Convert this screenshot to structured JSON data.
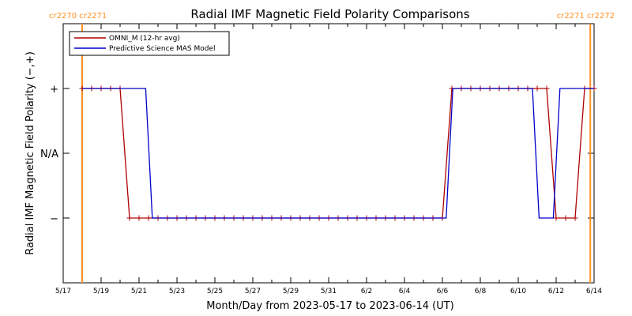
{
  "chart_data": {
    "type": "line",
    "title": "Radial IMF Magnetic Field Polarity Comparisons",
    "xlabel": "Month/Day from 2023-05-17 to 2023-06-14 (UT)",
    "ylabel": "Radial IMF Magnetic Field Polarity (−,+)",
    "x_tick_labels": [
      "5/17",
      "5/19",
      "5/21",
      "5/23",
      "5/25",
      "5/27",
      "5/29",
      "5/31",
      "6/2",
      "6/4",
      "6/6",
      "6/8",
      "6/10",
      "6/12",
      "6/14"
    ],
    "xlim": [
      0,
      28
    ],
    "y_tick_labels": [
      "+",
      "N/A",
      "−"
    ],
    "ylim": [
      -2,
      2
    ],
    "carrington": [
      {
        "x": 1.0,
        "label": "cr2270 cr2271"
      },
      {
        "x": 27.8,
        "label": "cr2271 cr2272"
      }
    ],
    "legend_position": "top-left",
    "series": [
      {
        "name": "OMNI_M (12-hr avg)",
        "color": "#b00000",
        "x": [
          1.0,
          1.5,
          2.0,
          2.5,
          3.0,
          3.5,
          4.0,
          4.5,
          5.0,
          5.5,
          6.0,
          6.5,
          7.0,
          7.5,
          8.0,
          8.5,
          9.0,
          9.5,
          10.0,
          10.5,
          11.0,
          11.5,
          12.0,
          12.5,
          13.0,
          13.5,
          14.0,
          14.5,
          15.0,
          15.5,
          16.0,
          16.5,
          17.0,
          17.5,
          18.0,
          18.5,
          19.0,
          19.5,
          20.0,
          20.5,
          21.0,
          21.5,
          22.0,
          22.5,
          23.0,
          23.5,
          24.0,
          24.5,
          25.0,
          25.5,
          26.0,
          26.5,
          27.0,
          27.5,
          28.0
        ],
        "y": [
          1,
          1,
          1,
          1,
          1,
          -1,
          -1,
          -1,
          -1,
          -1,
          -1,
          -1,
          -1,
          -1,
          -1,
          -1,
          -1,
          -1,
          -1,
          -1,
          -1,
          -1,
          -1,
          -1,
          -1,
          -1,
          -1,
          -1,
          -1,
          -1,
          -1,
          -1,
          -1,
          -1,
          -1,
          -1,
          -1,
          -1,
          -1,
          1,
          1,
          1,
          1,
          1,
          1,
          1,
          1,
          1,
          1,
          1,
          -1,
          -1,
          -1,
          1,
          1
        ],
        "markers": true
      },
      {
        "name": "Predictive Science MAS Model",
        "color": "#0000cc",
        "x": [
          1.0,
          4.35,
          4.7,
          20.2,
          20.55,
          24.75,
          25.1,
          25.85,
          26.2,
          28.0
        ],
        "y": [
          1,
          1,
          -1,
          -1,
          1,
          1,
          -1,
          -1,
          1,
          1
        ],
        "markers": false
      }
    ]
  }
}
